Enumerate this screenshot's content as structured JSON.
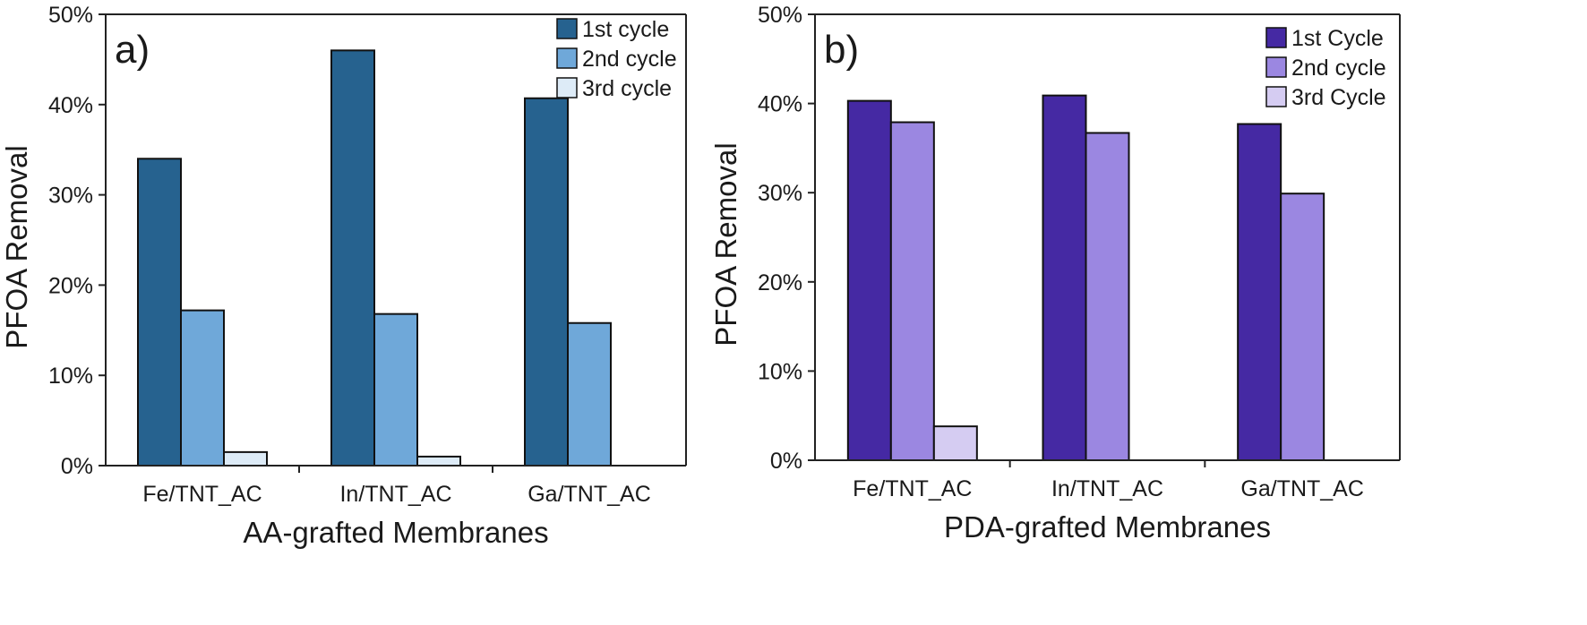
{
  "chart_data": [
    {
      "type": "bar",
      "panel_label": "a)",
      "xlabel": "AA-grafted Membranes",
      "ylabel": "PFOA Removal",
      "ylim": [
        0,
        50
      ],
      "yticks": [
        "0%",
        "10%",
        "20%",
        "30%",
        "40%",
        "50%"
      ],
      "categories": [
        "Fe/TNT_AC",
        "In/TNT_AC",
        "Ga/TNT_AC"
      ],
      "legend_position": "top-right",
      "series": [
        {
          "name": "1st cycle",
          "color": "#26628f",
          "values": [
            34.0,
            46.0,
            40.7
          ]
        },
        {
          "name": "2nd cycle",
          "color": "#6fa8d9",
          "values": [
            17.2,
            16.8,
            15.8
          ]
        },
        {
          "name": "3rd cycle",
          "color": "#ddebf7",
          "values": [
            1.5,
            1.0,
            0
          ]
        }
      ]
    },
    {
      "type": "bar",
      "panel_label": "b)",
      "xlabel": "PDA-grafted Membranes",
      "ylabel": "PFOA Removal",
      "ylim": [
        0,
        50
      ],
      "yticks": [
        "0%",
        "10%",
        "20%",
        "30%",
        "40%",
        "50%"
      ],
      "categories": [
        "Fe/TNT_AC",
        "In/TNT_AC",
        "Ga/TNT_AC"
      ],
      "legend_position": "top-right",
      "series": [
        {
          "name": "1st Cycle",
          "color": "#4529a3",
          "values": [
            40.3,
            40.9,
            37.7
          ]
        },
        {
          "name": "2nd cycle",
          "color": "#9b87e1",
          "values": [
            37.9,
            36.7,
            29.9
          ]
        },
        {
          "name": "3rd Cycle",
          "color": "#d5ccf2",
          "values": [
            3.8,
            0,
            0
          ]
        }
      ]
    }
  ]
}
